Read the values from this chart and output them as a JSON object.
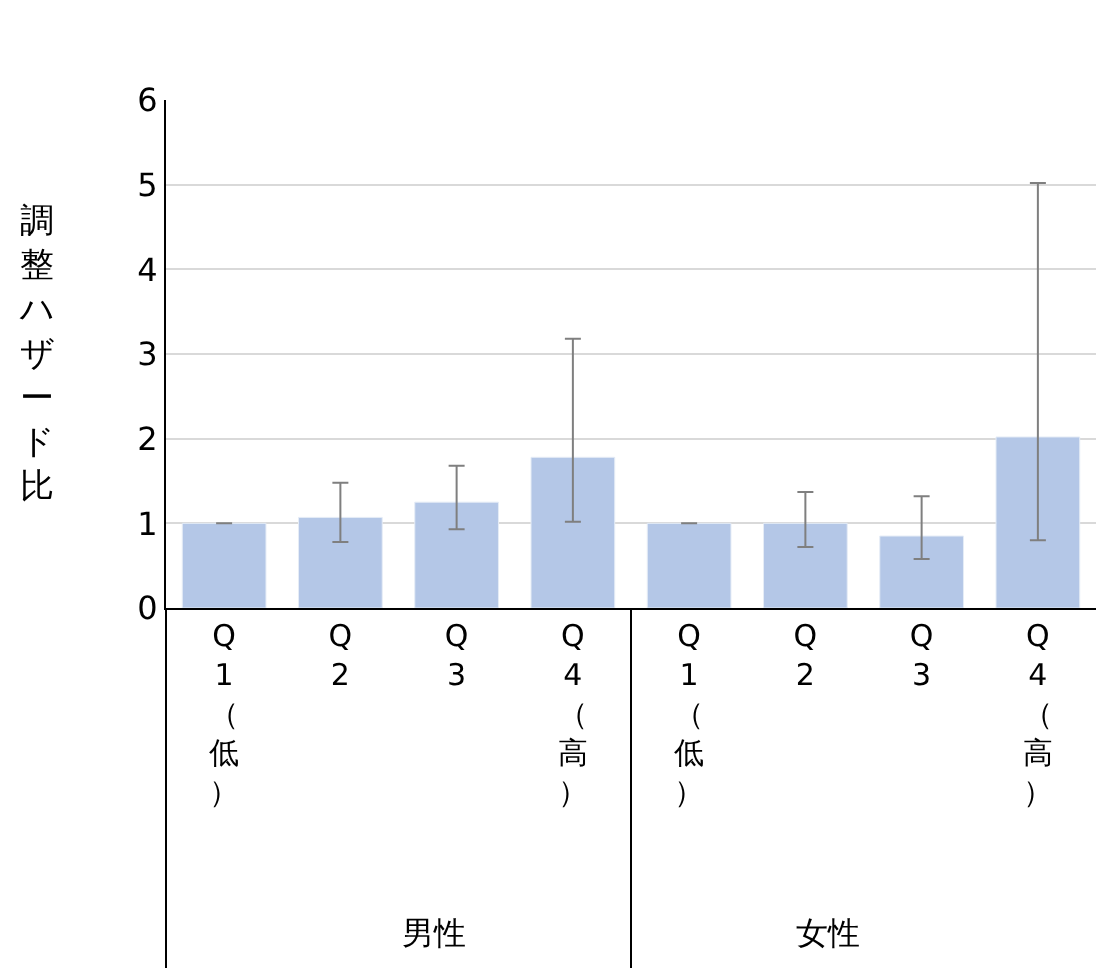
{
  "chart_data": {
    "type": "bar",
    "ylabel": "調整ハザード比",
    "categories": [
      "Q1（低）",
      "Q2",
      "Q3",
      "Q4（高）",
      "Q1（低）",
      "Q2",
      "Q3",
      "Q4（高）"
    ],
    "values": [
      1.0,
      1.07,
      1.25,
      1.78,
      1.0,
      1.0,
      0.85,
      2.02
    ],
    "errors": [
      null,
      [
        0.78,
        1.48
      ],
      [
        0.93,
        1.68
      ],
      [
        1.02,
        3.18
      ],
      null,
      [
        0.72,
        1.37
      ],
      [
        0.58,
        1.32
      ],
      [
        0.8,
        5.02
      ]
    ],
    "color": "#b4c7e7",
    "annotations": [
      "男性",
      "女性"
    ],
    "ylim": [
      0,
      6
    ],
    "yticks": [
      0,
      1,
      2,
      3,
      4,
      5,
      6
    ],
    "grid": "y"
  }
}
